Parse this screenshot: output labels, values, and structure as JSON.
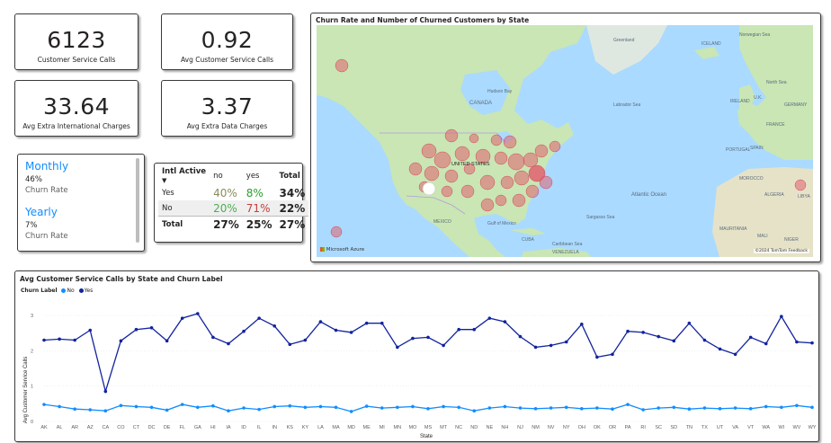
{
  "kpis": [
    {
      "value": "6123",
      "label": "Customer Service Calls"
    },
    {
      "value": "0.92",
      "label": "Avg Customer Service Calls"
    },
    {
      "value": "33.64",
      "label": "Avg Extra International Charges"
    },
    {
      "value": "3.37",
      "label": "Avg Extra Data Charges"
    }
  ],
  "slicer": {
    "items": [
      {
        "title": "Monthly",
        "value": "46%",
        "caption": "Churn Rate"
      },
      {
        "title": "Yearly",
        "value": "7%",
        "caption": "Churn Rate"
      }
    ]
  },
  "matrix": {
    "header": [
      "Intl Active",
      "no",
      "yes",
      "Total"
    ],
    "rows": [
      {
        "label": "Yes",
        "no": "40%",
        "yes": "8%",
        "total": "34%"
      },
      {
        "label": "No",
        "no": "20%",
        "yes": "71%",
        "total": "22%"
      }
    ],
    "total": {
      "label": "Total",
      "no": "27%",
      "yes": "25%",
      "total": "27%"
    },
    "colors": {
      "green": "#2ca02c",
      "olive": "#8c8c5c",
      "red": "#c04040",
      "greenlight": "#4caf50"
    }
  },
  "map": {
    "title": "Churn Rate and Number of Churned Customers by State",
    "labels": {
      "canada": "CANADA",
      "hudson": "Hudson Bay",
      "labrador": "Labrador Sea",
      "atlantic": "Atlantic Ocean",
      "sargasso": "Sargasso Sea",
      "gulf": "Gulf of\nMexico",
      "caribbean": "Caribbean Sea",
      "iceland": "ICELAND",
      "uk": "U.K.",
      "ireland": "IRELAND",
      "germany": "GERMANY",
      "france": "FRANCE",
      "spain": "SPAIN",
      "portugal": "PORTUGAL",
      "morocco": "MOROCCO",
      "algeria": "ALGERIA",
      "libya": "LIBYA",
      "mali": "MALI",
      "niger": "NIGER",
      "mauritania": "MAURITANIA",
      "usa": "UNITED STATES",
      "mexico": "MEXICO",
      "cuba": "CUBA",
      "venezuela": "VENEZUELA",
      "north_sea": "North Sea",
      "greenland": "Greenland",
      "norwegian": "Norwegian Sea"
    },
    "logo": "Microsoft Azure",
    "attribution": "©2024 TomTom Feedback",
    "colors": {
      "ocean": "#aadaff",
      "land": "#c9e6b4",
      "bubble": "#e06070"
    }
  },
  "chart_data": {
    "type": "line",
    "title": "Avg Customer Service Calls by State and Churn Label",
    "legend_title": "Churn Label",
    "xlabel": "State",
    "ylabel": "Avg Customer Service Calls",
    "ylim": [
      0,
      3
    ],
    "yticks": [
      "0",
      "1",
      "2",
      "3"
    ],
    "categories": [
      "AK",
      "AL",
      "AR",
      "AZ",
      "CA",
      "CO",
      "CT",
      "DC",
      "DE",
      "FL",
      "GA",
      "HI",
      "IA",
      "ID",
      "IL",
      "IN",
      "KS",
      "KY",
      "LA",
      "MA",
      "MD",
      "ME",
      "MI",
      "MN",
      "MO",
      "MS",
      "MT",
      "NC",
      "ND",
      "NE",
      "NH",
      "NJ",
      "NM",
      "NV",
      "NY",
      "OH",
      "OK",
      "OR",
      "PA",
      "RI",
      "SC",
      "SD",
      "TN",
      "TX",
      "UT",
      "VA",
      "VT",
      "WA",
      "WI",
      "WV",
      "WY"
    ],
    "series": [
      {
        "name": "No",
        "color": "#118dff",
        "values": [
          0.48,
          0.42,
          0.35,
          0.33,
          0.3,
          0.45,
          0.42,
          0.4,
          0.32,
          0.48,
          0.4,
          0.44,
          0.3,
          0.38,
          0.34,
          0.42,
          0.44,
          0.4,
          0.42,
          0.4,
          0.28,
          0.43,
          0.38,
          0.4,
          0.42,
          0.36,
          0.42,
          0.4,
          0.3,
          0.38,
          0.42,
          0.38,
          0.36,
          0.38,
          0.4,
          0.36,
          0.38,
          0.35,
          0.48,
          0.33,
          0.38,
          0.4,
          0.35,
          0.38,
          0.36,
          0.38,
          0.36,
          0.42,
          0.4,
          0.45,
          0.4
        ]
      },
      {
        "name": "Yes",
        "color": "#12239e",
        "values": [
          2.3,
          2.33,
          2.3,
          2.58,
          0.85,
          2.28,
          2.6,
          2.65,
          2.28,
          2.92,
          3.05,
          2.38,
          2.2,
          2.55,
          2.92,
          2.7,
          2.18,
          2.3,
          2.82,
          2.58,
          2.52,
          2.78,
          2.78,
          2.1,
          2.35,
          2.38,
          2.15,
          2.6,
          2.6,
          2.92,
          2.82,
          2.4,
          2.1,
          2.15,
          2.25,
          2.75,
          1.82,
          1.9,
          2.55,
          2.52,
          2.4,
          2.28,
          2.78,
          2.3,
          2.05,
          1.9,
          2.38,
          2.2,
          2.97,
          2.25,
          2.22
        ]
      }
    ]
  }
}
